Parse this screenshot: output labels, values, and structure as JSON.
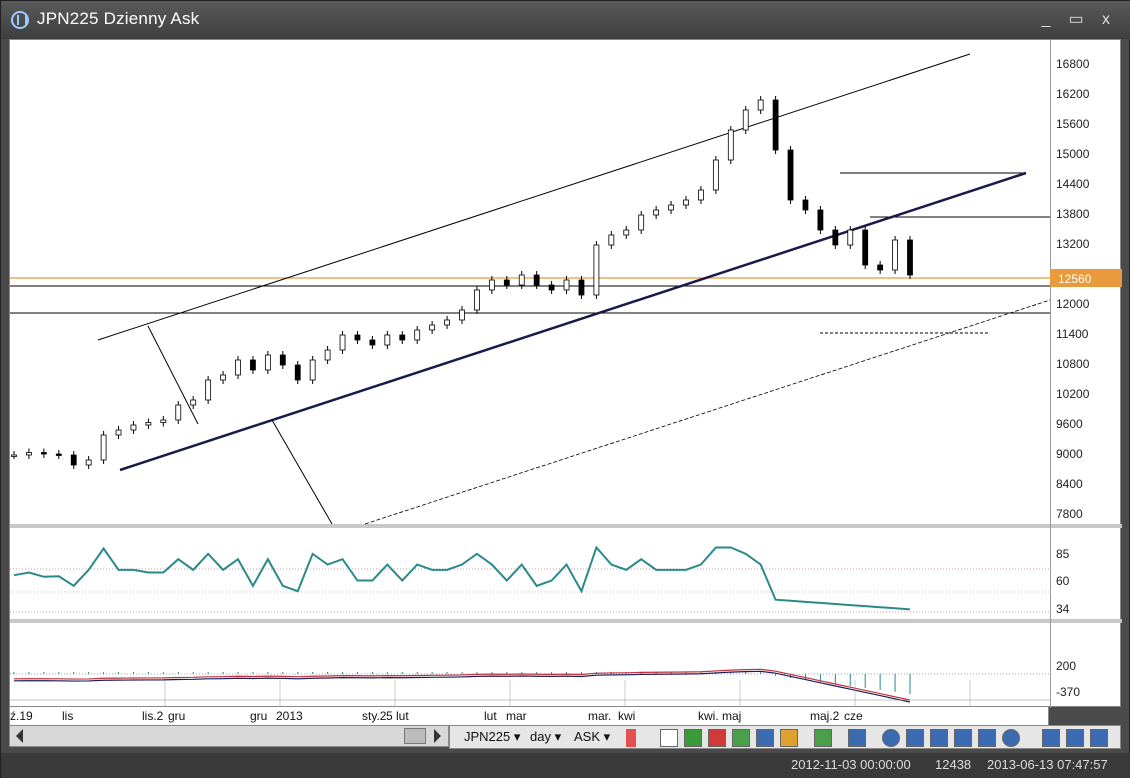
{
  "window": {
    "title": "JPN225 Dzienny Ask",
    "controls": [
      "_",
      "▭",
      "x"
    ]
  },
  "price_axis": {
    "ticks": [
      "16800",
      "16200",
      "15600",
      "15000",
      "14400",
      "13800",
      "13200",
      "12560",
      "12000",
      "11400",
      "10800",
      "10200",
      "9600",
      "9000",
      "8400",
      "7800"
    ],
    "current_price": "12560"
  },
  "rsi_axis": {
    "ticks": [
      "85",
      "60",
      "34"
    ]
  },
  "macd_axis": {
    "ticks": [
      "200",
      "-370"
    ]
  },
  "time_axis": {
    "labels": [
      "ź.19",
      "lis",
      "lis.2",
      "gru",
      "gru",
      "2013",
      "sty.2",
      "5",
      "lut",
      "lut",
      "mar",
      "mar.",
      "kwi",
      "kwi.",
      "maj",
      "maj.2",
      "cze"
    ]
  },
  "toolbar": {
    "symbol": "JPN225",
    "timeframe": "day",
    "price_type": "ASK",
    "symbol_arrow": "▾",
    "timeframe_arrow": "▾",
    "price_type_arrow": "▾"
  },
  "status": {
    "date_start": "2012-11-03 00:00:00",
    "value": "12438",
    "date_end": "2013-06-13 07:47:57"
  },
  "colors": {
    "price_line": "#e89a3c",
    "rsi_line": "#2a8a8a",
    "macd_fast": "#c0303a",
    "macd_slow": "#1c1c5a",
    "channel": "#1a1a4a"
  },
  "chart_data": {
    "type": "candlestick",
    "title": "JPN225 Dzienny Ask",
    "ylim": [
      7600,
      17000
    ],
    "approx_closes": [
      8900,
      8950,
      8920,
      8900,
      8700,
      8800,
      9300,
      9400,
      9500,
      9550,
      9600,
      9900,
      10000,
      10400,
      10500,
      10800,
      10600,
      10900,
      10700,
      10400,
      10800,
      11000,
      11300,
      11200,
      11100,
      11300,
      11200,
      11400,
      11500,
      11600,
      11800,
      12200,
      12400,
      12300,
      12500,
      12300,
      12200,
      12400,
      12100,
      13100,
      13300,
      13400,
      13700,
      13800,
      13900,
      14000,
      14200,
      14800,
      15400,
      15800,
      16000,
      15000,
      14000,
      13800,
      13400,
      13100,
      13400,
      12700,
      12600,
      13200,
      12500
    ],
    "rsi_levels": [
      85,
      60,
      34
    ],
    "macd_levels": [
      200,
      -370
    ]
  }
}
